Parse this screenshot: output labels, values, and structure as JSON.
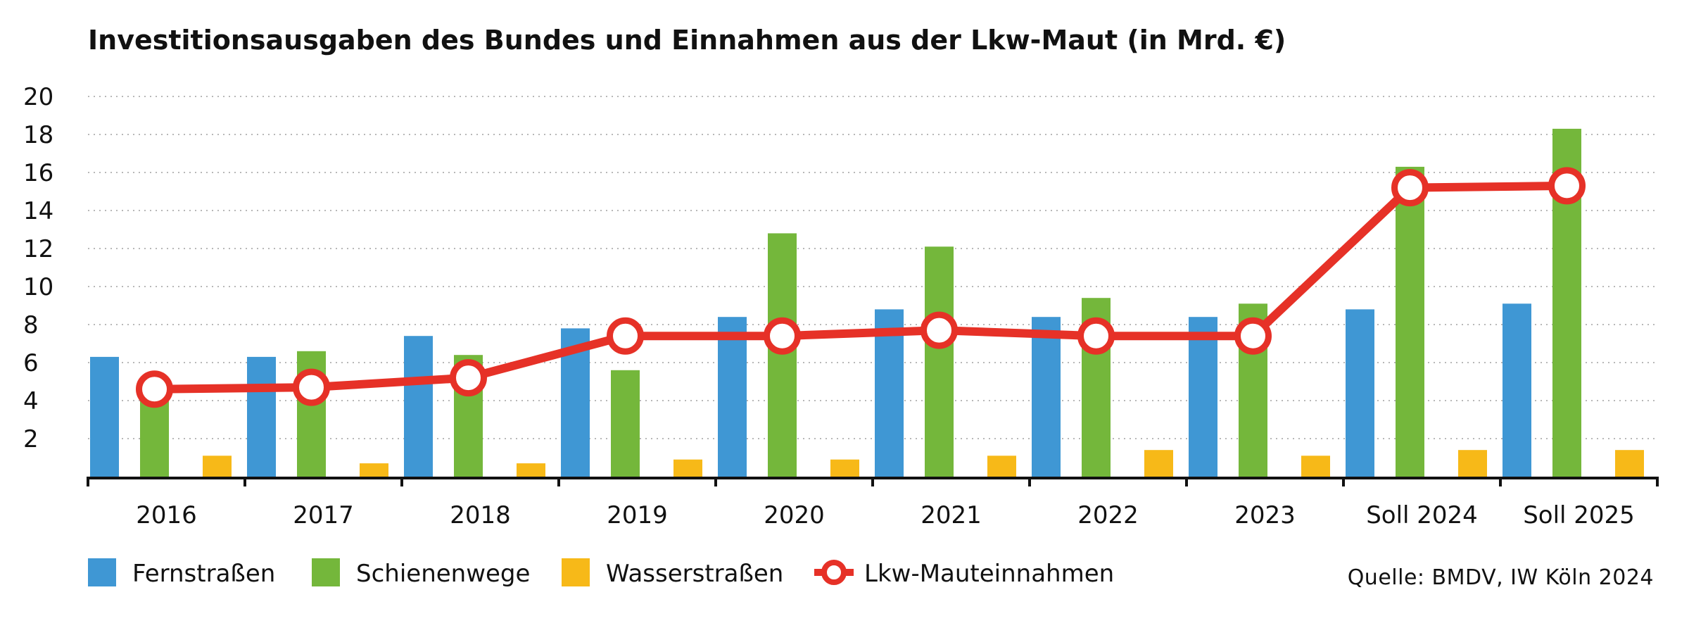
{
  "chart_data": {
    "type": "bar",
    "title": "Investitionsausgaben des Bundes und Einnahmen aus der Lkw-Maut (in Mrd. €)",
    "categories": [
      "2016",
      "2017",
      "2018",
      "2019",
      "2020",
      "2021",
      "2022",
      "2023",
      "Soll 2024",
      "Soll 2025"
    ],
    "ylim": [
      0,
      20
    ],
    "yticks": [
      2,
      4,
      6,
      8,
      10,
      12,
      14,
      16,
      18,
      20
    ],
    "grid": true,
    "legend_position": "bottom-left",
    "series": [
      {
        "name": "Fernstraßen",
        "type": "bar",
        "color": "#3f97d4",
        "values": [
          6.3,
          6.3,
          7.4,
          7.8,
          8.4,
          8.8,
          8.4,
          8.4,
          8.8,
          9.1
        ]
      },
      {
        "name": "Schienenwege",
        "type": "bar",
        "color": "#74b73b",
        "values": [
          4.6,
          6.6,
          6.4,
          5.6,
          12.8,
          12.1,
          9.4,
          9.1,
          16.3,
          18.3
        ]
      },
      {
        "name": "Wasserstraßen",
        "type": "bar",
        "color": "#f7b918",
        "values": [
          1.1,
          0.7,
          0.7,
          0.9,
          0.9,
          1.1,
          1.4,
          1.1,
          1.4,
          1.4
        ]
      },
      {
        "name": "Lkw-Mauteinnahmen",
        "type": "line",
        "color": "#e63127",
        "values": [
          4.6,
          4.7,
          5.2,
          7.4,
          7.4,
          7.7,
          7.4,
          7.4,
          15.2,
          15.3
        ]
      }
    ],
    "source": "Quelle: BMDV, IW Köln 2024"
  }
}
